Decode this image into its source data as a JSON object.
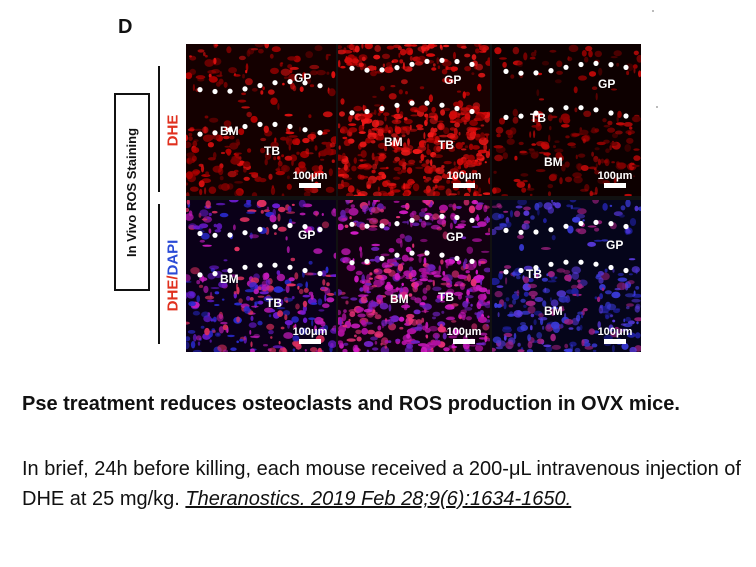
{
  "figure": {
    "panel_letter": "D",
    "side_label": "In Vivo ROS Staining",
    "row_labels": {
      "dhe": "DHE",
      "dhe_prefix": "DHE/",
      "dapi": "DAPI"
    },
    "colors": {
      "dhe_label": "#e0301e",
      "dapi_label": "#2a4bd6",
      "dhe_signal": "#e01010",
      "merge_signal": "#d11ac4",
      "dapi_signal": "#3a3ad8"
    },
    "panels": [
      {
        "labels": [
          "GP",
          "BM",
          "TB"
        ],
        "scale": "100μm"
      },
      {
        "labels": [
          "GP",
          "BM",
          "TB"
        ],
        "scale": "100μm"
      },
      {
        "labels": [
          "GP",
          "TB",
          "BM"
        ],
        "scale": "100μm"
      },
      {
        "labels": [
          "GP",
          "BM",
          "TB"
        ],
        "scale": "100μm"
      },
      {
        "labels": [
          "GP",
          "BM",
          "TB"
        ],
        "scale": "100μm"
      },
      {
        "labels": [
          "GP",
          "TB",
          "BM"
        ],
        "scale": "100μm"
      }
    ]
  },
  "caption": {
    "title": "Pse treatment reduces osteoclasts and ROS production in OVX mice.",
    "body": "In brief, 24h before killing, each mouse received a 200-μL intravenous injection of DHE at 25 mg/kg.",
    "citation": "Theranostics. 2019 Feb 28;9(6):1634-1650."
  }
}
